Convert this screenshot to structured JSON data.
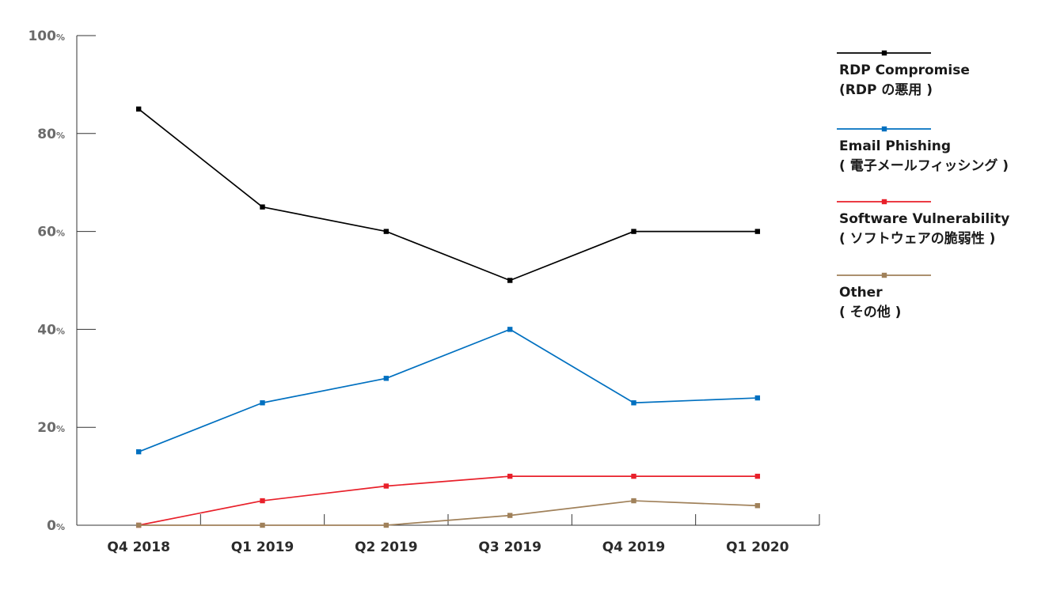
{
  "chart_data": {
    "type": "line",
    "categories": [
      "Q4 2018",
      "Q1 2019",
      "Q2 2019",
      "Q3 2019",
      "Q4 2019",
      "Q1 2020"
    ],
    "ylim": [
      0,
      100
    ],
    "yticks": [
      {
        "value": 0,
        "num": "0",
        "unit": "%"
      },
      {
        "value": 20,
        "num": "20",
        "unit": "%"
      },
      {
        "value": 40,
        "num": "40",
        "unit": "%"
      },
      {
        "value": 60,
        "num": "60",
        "unit": "%"
      },
      {
        "value": 80,
        "num": "80",
        "unit": "%"
      },
      {
        "value": 100,
        "num": "100",
        "unit": "%"
      }
    ],
    "grid": false,
    "legend_position": "right",
    "series": [
      {
        "name": "RDP Compromise",
        "name_ja": "(RDP の悪用 )",
        "color": "#000000",
        "values": [
          85,
          65,
          60,
          50,
          60,
          60
        ]
      },
      {
        "name": "Email Phishing",
        "name_ja": "( 電子メールフィッシング )",
        "color": "#0070c0",
        "values": [
          15,
          25,
          30,
          40,
          25,
          26
        ]
      },
      {
        "name": "Software Vulnerability",
        "name_ja": "( ソフトウェアの脆弱性 )",
        "color": "#e8202a",
        "values": [
          0,
          5,
          8,
          10,
          10,
          10
        ]
      },
      {
        "name": "Other",
        "name_ja": "( その他 )",
        "color": "#a0815a",
        "values": [
          0,
          0,
          0,
          2,
          5,
          4
        ]
      }
    ]
  }
}
